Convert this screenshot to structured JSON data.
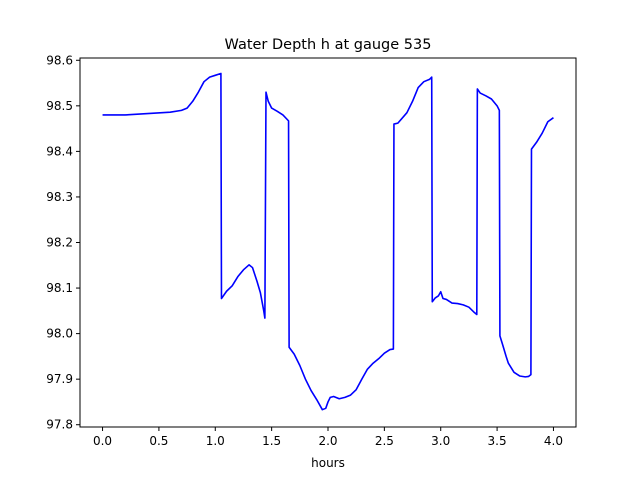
{
  "chart_data": {
    "type": "line",
    "title": "Water Depth h at gauge 535",
    "xlabel": "hours",
    "ylabel": "",
    "xlim": [
      -0.2,
      4.2
    ],
    "ylim": [
      97.795,
      98.605
    ],
    "xticks": [
      0.0,
      0.5,
      1.0,
      1.5,
      2.0,
      2.5,
      3.0,
      3.5,
      4.0
    ],
    "xtick_labels": [
      "0.0",
      "0.5",
      "1.0",
      "1.5",
      "2.0",
      "2.5",
      "3.0",
      "3.5",
      "4.0"
    ],
    "yticks": [
      97.8,
      97.9,
      98.0,
      98.1,
      98.2,
      98.3,
      98.4,
      98.5,
      98.6
    ],
    "ytick_labels": [
      "97.8",
      "97.9",
      "98.0",
      "98.1",
      "98.2",
      "98.3",
      "98.4",
      "98.5",
      "98.6"
    ],
    "grid": false,
    "series": [
      {
        "color": "#0000ff",
        "points": [
          [
            0.0,
            98.48
          ],
          [
            0.2,
            98.48
          ],
          [
            0.4,
            98.483
          ],
          [
            0.6,
            98.486
          ],
          [
            0.7,
            98.49
          ],
          [
            0.75,
            98.495
          ],
          [
            0.8,
            98.51
          ],
          [
            0.85,
            98.53
          ],
          [
            0.9,
            98.553
          ],
          [
            0.95,
            98.563
          ],
          [
            1.0,
            98.567
          ],
          [
            1.05,
            98.571
          ],
          [
            1.055,
            98.077
          ],
          [
            1.1,
            98.093
          ],
          [
            1.15,
            98.105
          ],
          [
            1.2,
            98.125
          ],
          [
            1.25,
            98.14
          ],
          [
            1.3,
            98.151
          ],
          [
            1.33,
            98.145
          ],
          [
            1.37,
            98.115
          ],
          [
            1.4,
            98.09
          ],
          [
            1.43,
            98.05
          ],
          [
            1.44,
            98.034
          ],
          [
            1.45,
            98.53
          ],
          [
            1.47,
            98.51
          ],
          [
            1.5,
            98.495
          ],
          [
            1.55,
            98.488
          ],
          [
            1.6,
            98.48
          ],
          [
            1.65,
            98.467
          ],
          [
            1.655,
            97.97
          ],
          [
            1.7,
            97.955
          ],
          [
            1.75,
            97.93
          ],
          [
            1.8,
            97.9
          ],
          [
            1.85,
            97.875
          ],
          [
            1.9,
            97.855
          ],
          [
            1.95,
            97.833
          ],
          [
            1.98,
            97.836
          ],
          [
            2.0,
            97.85
          ],
          [
            2.02,
            97.86
          ],
          [
            2.05,
            97.862
          ],
          [
            2.1,
            97.857
          ],
          [
            2.15,
            97.86
          ],
          [
            2.2,
            97.865
          ],
          [
            2.25,
            97.877
          ],
          [
            2.3,
            97.9
          ],
          [
            2.35,
            97.922
          ],
          [
            2.4,
            97.935
          ],
          [
            2.45,
            97.945
          ],
          [
            2.5,
            97.957
          ],
          [
            2.55,
            97.965
          ],
          [
            2.58,
            97.966
          ],
          [
            2.585,
            98.46
          ],
          [
            2.62,
            98.462
          ],
          [
            2.7,
            98.485
          ],
          [
            2.75,
            98.51
          ],
          [
            2.8,
            98.54
          ],
          [
            2.85,
            98.553
          ],
          [
            2.9,
            98.558
          ],
          [
            2.92,
            98.563
          ],
          [
            2.925,
            98.07
          ],
          [
            2.95,
            98.078
          ],
          [
            2.98,
            98.083
          ],
          [
            3.0,
            98.092
          ],
          [
            3.02,
            98.077
          ],
          [
            3.05,
            98.075
          ],
          [
            3.1,
            98.067
          ],
          [
            3.15,
            98.066
          ],
          [
            3.2,
            98.063
          ],
          [
            3.25,
            98.058
          ],
          [
            3.3,
            98.046
          ],
          [
            3.32,
            98.042
          ],
          [
            3.325,
            98.537
          ],
          [
            3.35,
            98.528
          ],
          [
            3.4,
            98.522
          ],
          [
            3.45,
            98.515
          ],
          [
            3.5,
            98.5
          ],
          [
            3.52,
            98.49
          ],
          [
            3.525,
            97.995
          ],
          [
            3.55,
            97.975
          ],
          [
            3.58,
            97.95
          ],
          [
            3.6,
            97.935
          ],
          [
            3.65,
            97.915
          ],
          [
            3.7,
            97.907
          ],
          [
            3.75,
            97.905
          ],
          [
            3.78,
            97.906
          ],
          [
            3.8,
            97.91
          ],
          [
            3.805,
            98.405
          ],
          [
            3.85,
            98.42
          ],
          [
            3.9,
            98.44
          ],
          [
            3.95,
            98.465
          ],
          [
            4.0,
            98.474
          ]
        ]
      }
    ]
  }
}
